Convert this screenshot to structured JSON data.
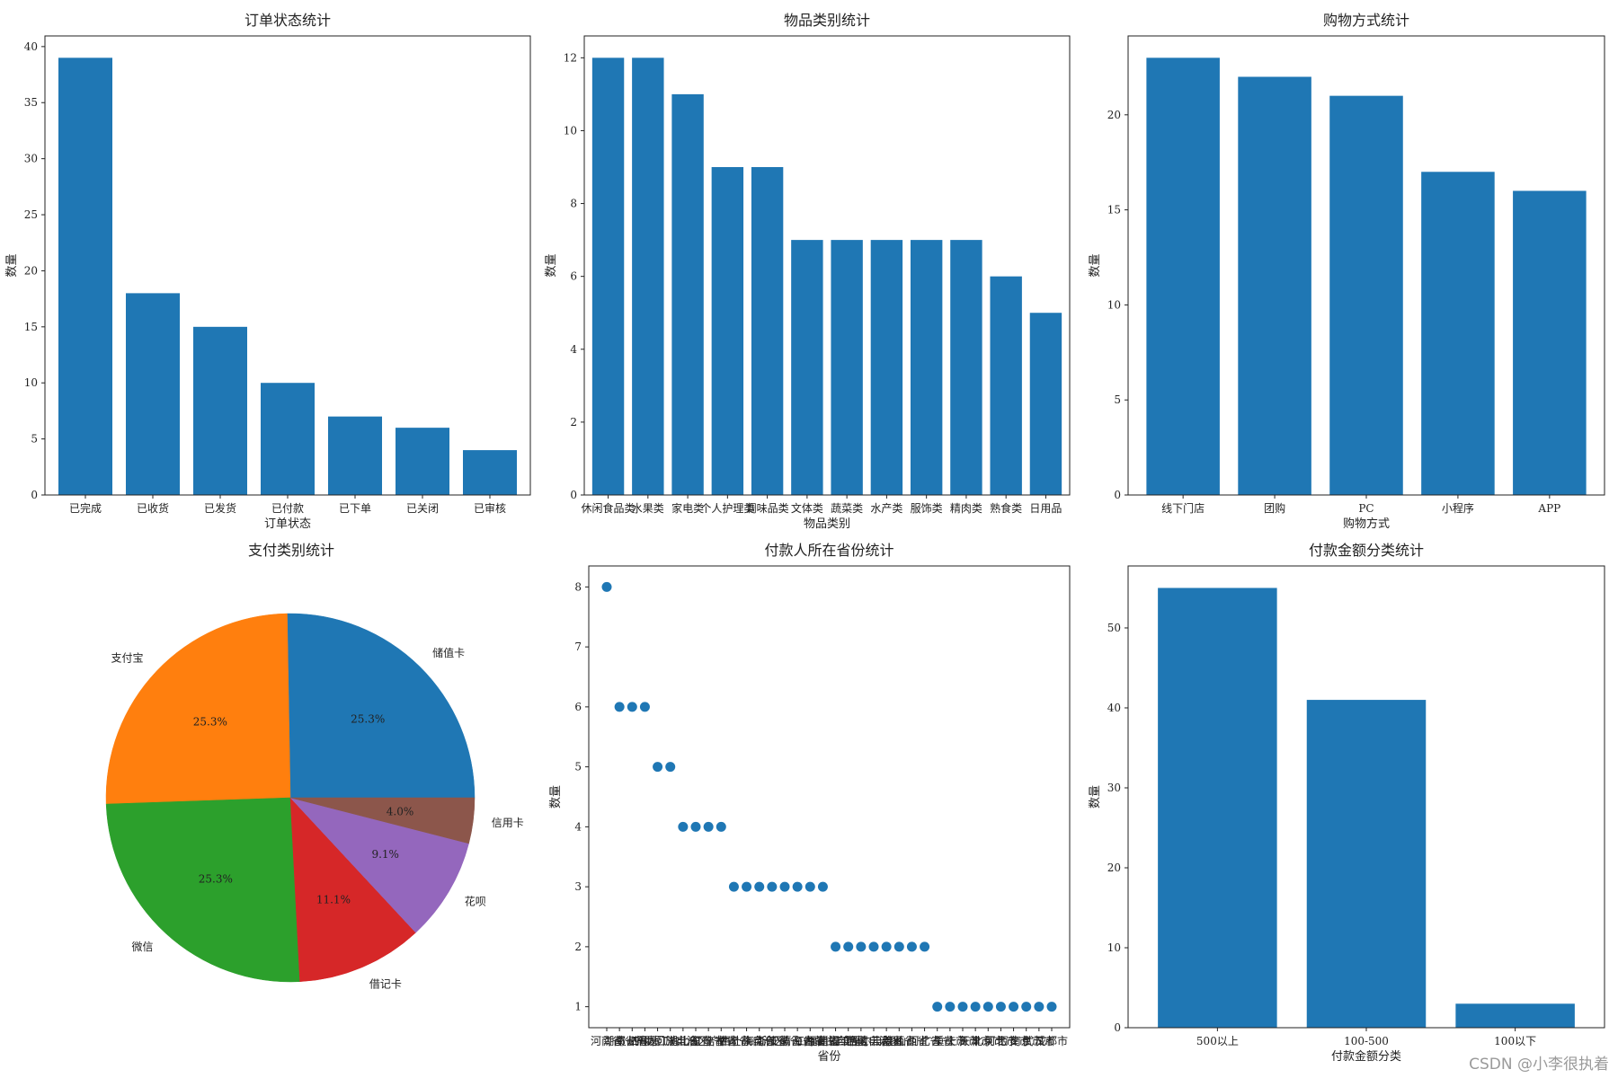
{
  "watermark": "CSDN @小李很执着",
  "chart_data": [
    {
      "type": "bar",
      "title": "订单状态统计",
      "xlabel": "订单状态",
      "ylabel": "数量",
      "categories": [
        "已完成",
        "已收货",
        "已发货",
        "已付款",
        "已下单",
        "已关闭",
        "已审核"
      ],
      "values": [
        39,
        18,
        15,
        10,
        7,
        6,
        4
      ],
      "yticks": [
        0,
        5,
        10,
        15,
        20,
        25,
        30,
        35,
        40
      ],
      "ylim": [
        0,
        40.95
      ],
      "color": "#1f77b4"
    },
    {
      "type": "bar",
      "title": "物品类别统计",
      "xlabel": "物品类别",
      "ylabel": "数量",
      "categories": [
        "休闲食品类",
        "水果类",
        "家电类",
        "个人护理类",
        "调味品类",
        "文体类",
        "蔬菜类",
        "水产类",
        "服饰类",
        "精肉类",
        "熟食类",
        "日用品"
      ],
      "values": [
        12,
        12,
        11,
        9,
        9,
        7,
        7,
        7,
        7,
        7,
        6,
        5
      ],
      "yticks": [
        0,
        2,
        4,
        6,
        8,
        10,
        12
      ],
      "ylim": [
        0,
        12.6
      ],
      "color": "#1f77b4"
    },
    {
      "type": "bar",
      "title": "购物方式统计",
      "xlabel": "购物方式",
      "ylabel": "数量",
      "categories": [
        "线下门店",
        "团购",
        "PC",
        "小程序",
        "APP"
      ],
      "values": [
        23,
        22,
        21,
        17,
        16
      ],
      "yticks": [
        0,
        5,
        10,
        15,
        20
      ],
      "ylim": [
        0,
        24.15
      ],
      "color": "#1f77b4"
    },
    {
      "type": "pie",
      "title": "支付类别统计",
      "slices": [
        {
          "label": "储值卡",
          "value": 25.3,
          "pct": "25.3%",
          "color": "#1f77b4"
        },
        {
          "label": "支付宝",
          "value": 25.3,
          "pct": "25.3%",
          "color": "#ff7f0e"
        },
        {
          "label": "微信",
          "value": 25.3,
          "pct": "25.3%",
          "color": "#2ca02c"
        },
        {
          "label": "借记卡",
          "value": 11.1,
          "pct": "11.1%",
          "color": "#d62728"
        },
        {
          "label": "花呗",
          "value": 9.1,
          "pct": "9.1%",
          "color": "#9467bd"
        },
        {
          "label": "信用卡",
          "value": 4.0,
          "pct": "4.0%",
          "color": "#8c564b"
        }
      ]
    },
    {
      "type": "scatter",
      "title": "付款人所在省份统计",
      "xlabel": "省份",
      "ylabel": "数量",
      "categories": [
        "河南省",
        "湖南省",
        "贵州省",
        "四川省",
        "黑龙江省",
        "宁夏回族自治区",
        "湖北省",
        "山东省",
        "辽宁省",
        "吉林省",
        "甘肃省",
        "广西壮族自治区",
        "海南省",
        "浙江省",
        "安徽省",
        "青海省",
        "江西省",
        "福建省",
        "内蒙古自治区",
        "江苏省",
        "新疆维吾尔自治区",
        "西藏自治区",
        "云南省",
        "陕西省",
        "山西省",
        "河北省",
        "广东省",
        "重庆市",
        "上海市",
        "天津市",
        "北京市",
        "河北市",
        "西安市",
        "南京市",
        "武汉市",
        "成都市"
      ],
      "values": [
        8,
        6,
        6,
        6,
        5,
        5,
        4,
        4,
        4,
        4,
        3,
        3,
        3,
        3,
        3,
        3,
        3,
        3,
        2,
        2,
        2,
        2,
        2,
        2,
        2,
        2,
        1,
        1,
        1,
        1,
        1,
        1,
        1,
        1,
        1,
        1
      ],
      "yticks": [
        1,
        2,
        3,
        4,
        5,
        6,
        7,
        8
      ],
      "ylim": [
        0.65,
        8.35
      ],
      "color": "#1f77b4"
    },
    {
      "type": "bar",
      "title": "付款金额分类统计",
      "xlabel": "付款金额分类",
      "ylabel": "数量",
      "categories": [
        "500以上",
        "100-500",
        "100以下"
      ],
      "values": [
        55,
        41,
        3
      ],
      "yticks": [
        0,
        10,
        20,
        30,
        40,
        50
      ],
      "ylim": [
        0,
        57.75
      ],
      "color": "#1f77b4"
    }
  ]
}
